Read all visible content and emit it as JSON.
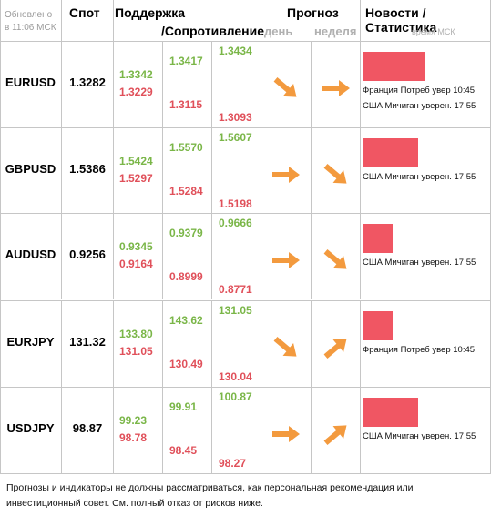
{
  "header": {
    "updated_line1": "Обновлено",
    "updated_line2": "в 11:06 МСК",
    "spot": "Спот",
    "support": "Поддержка",
    "resistance": "/Сопротивление",
    "forecast": "Прогноз",
    "day": "день",
    "week": "неделя",
    "news": "Новости / Статистика",
    "news_time": "время МСК"
  },
  "colors": {
    "support": "#7ab648",
    "resistance": "#e0505a",
    "arrow": "#f39a3e",
    "bar": "#f05663",
    "grid": "#c6c6c6"
  },
  "rows": [
    {
      "symbol": "EURUSD",
      "spot": "1.3282",
      "s1": "1.3342",
      "r1": "1.3229",
      "s2": "1.3417",
      "r2": "1.3115",
      "s3": "1.3434",
      "r3": "1.3093",
      "day_arrow": "arrow-down-right-icon",
      "week_arrow": "arrow-right-icon",
      "bar_fraction": 0.49,
      "news": [
        "Франция Потреб увер 10:45",
        "США Мичиган уверен. 17:55"
      ]
    },
    {
      "symbol": "GBPUSD",
      "spot": "1.5386",
      "s1": "1.5424",
      "r1": "1.5297",
      "s2": "1.5570",
      "r2": "1.5284",
      "s3": "1.5607",
      "r3": "1.5198",
      "day_arrow": "arrow-right-icon",
      "week_arrow": "arrow-down-right-icon",
      "bar_fraction": 0.44,
      "news": [
        "США Мичиган уверен. 17:55"
      ]
    },
    {
      "symbol": "AUDUSD",
      "spot": "0.9256",
      "s1": "0.9345",
      "r1": "0.9164",
      "s2": "0.9379",
      "r2": "0.8999",
      "s3": "0.9666",
      "r3": "0.8771",
      "day_arrow": "arrow-right-icon",
      "week_arrow": "arrow-down-right-icon",
      "bar_fraction": 0.24,
      "news": [
        "США Мичиган уверен. 17:55"
      ]
    },
    {
      "symbol": "EURJPY",
      "spot": "131.32",
      "s1": "133.80",
      "r1": "131.05",
      "s2": "143.62",
      "r2": "130.49",
      "s3": "131.05",
      "r3": "130.04",
      "day_arrow": "arrow-down-right-icon",
      "week_arrow": "arrow-up-right-icon",
      "bar_fraction": 0.24,
      "news": [
        "Франция Потреб увер 10:45"
      ]
    },
    {
      "symbol": "USDJPY",
      "spot": "98.87",
      "s1": "99.23",
      "r1": "98.78",
      "s2": "99.91",
      "r2": "98.45",
      "s3": "100.87",
      "r3": "98.27",
      "day_arrow": "arrow-right-icon",
      "week_arrow": "arrow-up-right-icon",
      "bar_fraction": 0.44,
      "news": [
        "США Мичиган уверен. 17:55"
      ]
    }
  ],
  "footer": {
    "disclaimer": "Прогнозы и индикаторы не должны рассматриваться, как персональная рекомендация или инвестиционный совет. См. полный отказ от рисков ниже."
  }
}
